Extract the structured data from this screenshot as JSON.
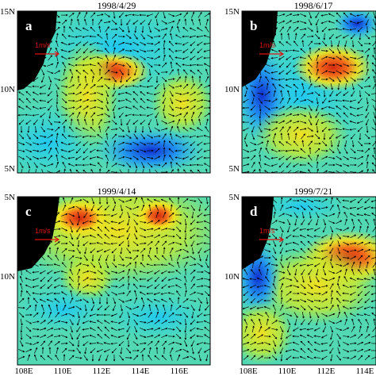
{
  "panels": [
    {
      "letter": "a",
      "date": "1998/4/29",
      "scale": "1m/s"
    },
    {
      "letter": "b",
      "date": "1998/6/17",
      "scale": "1m/s"
    },
    {
      "letter": "c",
      "date": "1999/4/14",
      "scale": "1m/s"
    },
    {
      "letter": "d",
      "date": "1999/7/21",
      "scale": "1m/s"
    }
  ],
  "y_axis_labels": [
    "15N",
    "10N",
    "5N"
  ],
  "x_axis_labels": [
    "108E",
    "110E",
    "112E",
    "114E",
    "116E"
  ]
}
